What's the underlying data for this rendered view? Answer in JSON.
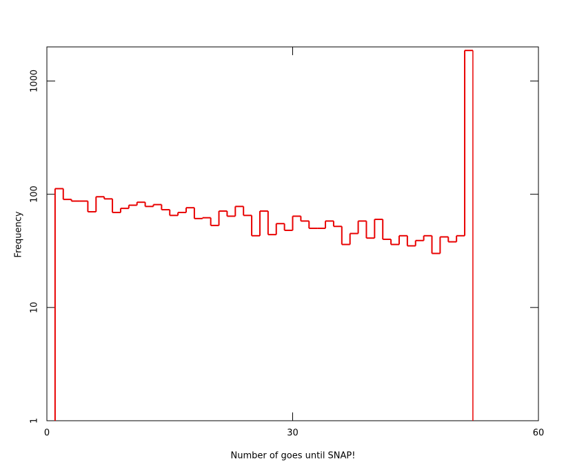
{
  "chart_data": {
    "type": "histogram",
    "xlabel": "Number of goes until SNAP!",
    "ylabel": "Frequency",
    "bins": [
      1,
      2,
      3,
      4,
      5,
      6,
      7,
      8,
      9,
      10,
      11,
      12,
      13,
      14,
      15,
      16,
      17,
      18,
      19,
      20,
      21,
      22,
      23,
      24,
      25,
      26,
      27,
      28,
      29,
      30,
      31,
      32,
      33,
      34,
      35,
      36,
      37,
      38,
      39,
      40,
      41,
      42,
      43,
      44,
      45,
      46,
      47,
      48,
      49,
      50,
      51,
      52
    ],
    "values": [
      112,
      90,
      87,
      87,
      70,
      95,
      91,
      69,
      75,
      80,
      85,
      78,
      81,
      73,
      65,
      69,
      76,
      61,
      62,
      53,
      71,
      64,
      78,
      65,
      43,
      71,
      44,
      55,
      48,
      64,
      58,
      50,
      50,
      58,
      52,
      36,
      45,
      58,
      41,
      60,
      40,
      36,
      43,
      35,
      39,
      43,
      30,
      42,
      38,
      43,
      1860
    ],
    "color": "#e80000",
    "xlim": [
      0,
      60
    ],
    "xticks": [
      0,
      30,
      60
    ],
    "ylim": [
      1,
      2000
    ],
    "yticks": [
      1,
      10,
      100,
      1000
    ],
    "ylog": true
  }
}
